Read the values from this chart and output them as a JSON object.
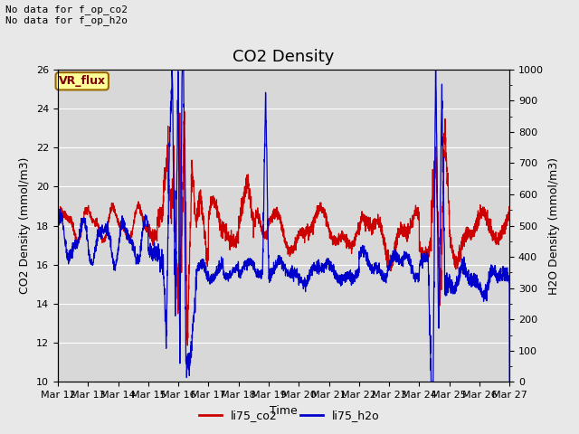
{
  "title": "CO2 Density",
  "xlabel": "Time",
  "ylabel_left": "CO2 Density (mmol/m3)",
  "ylabel_right": "H2O Density (mmol/m3)",
  "ylim_left": [
    10,
    26
  ],
  "ylim_right": [
    0,
    1000
  ],
  "yticks_left": [
    10,
    12,
    14,
    16,
    18,
    20,
    22,
    24,
    26
  ],
  "yticks_right": [
    0,
    100,
    200,
    300,
    400,
    500,
    600,
    700,
    800,
    900,
    1000
  ],
  "xtick_labels": [
    "Mar 12",
    "Mar 13",
    "Mar 14",
    "Mar 15",
    "Mar 16",
    "Mar 17",
    "Mar 18",
    "Mar 19",
    "Mar 20",
    "Mar 21",
    "Mar 22",
    "Mar 23",
    "Mar 24",
    "Mar 25",
    "Mar 26",
    "Mar 27"
  ],
  "annotation_text": "No data for f_op_co2\nNo data for f_op_h2o",
  "box_label": "VR_flux",
  "legend_labels": [
    "li75_co2",
    "li75_h2o"
  ],
  "legend_colors": [
    "#cc0000",
    "#0000cc"
  ],
  "line_color_co2": "#cc0000",
  "line_color_h2o": "#0000cc",
  "fig_facecolor": "#e8e8e8",
  "plot_facecolor": "#d8d8d8",
  "grid_color": "#ffffff",
  "box_bg_color": "#ffff99",
  "box_edge_color": "#996600",
  "box_text_color": "#800000",
  "title_fontsize": 13,
  "label_fontsize": 9,
  "tick_fontsize": 8,
  "annotation_fontsize": 8,
  "linewidth": 0.9
}
